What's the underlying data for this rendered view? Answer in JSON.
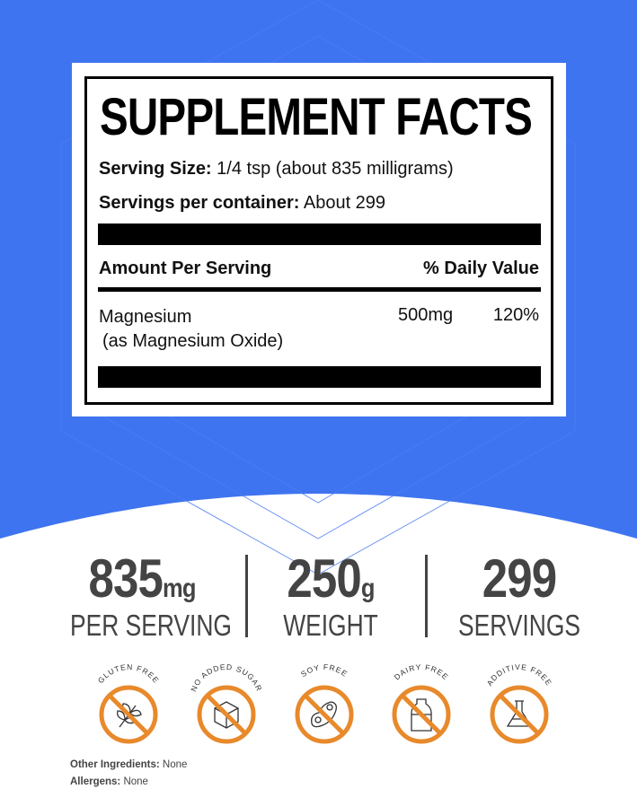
{
  "colors": {
    "background_blue": "#3f74f0",
    "badge_orange": "#e8892b",
    "stat_gray": "#444444"
  },
  "facts": {
    "title": "SUPPLEMENT FACTS",
    "serving_size_label": "Serving Size:",
    "serving_size_value": "1/4 tsp (about 835 milligrams)",
    "servings_label": "Servings per container:",
    "servings_value": "About 299",
    "amount_header": "Amount Per Serving",
    "dv_header": "% Daily Value",
    "rows": [
      {
        "name": "Magnesium",
        "sub": "(as Magnesium Oxide)",
        "amount": "500mg",
        "dv": "120%"
      }
    ]
  },
  "stats": [
    {
      "value": "835",
      "unit": "mg",
      "label": "PER SERVING"
    },
    {
      "value": "250",
      "unit": "g",
      "label": "WEIGHT"
    },
    {
      "value": "299",
      "unit": "",
      "label": "SERVINGS"
    }
  ],
  "badges": [
    {
      "text": "GLUTEN FREE",
      "icon": "wheat-icon"
    },
    {
      "text": "NO ADDED SUGAR",
      "icon": "sugar-cube-icon"
    },
    {
      "text": "SOY FREE",
      "icon": "soybean-icon"
    },
    {
      "text": "DAIRY FREE",
      "icon": "milk-bottle-icon"
    },
    {
      "text": "ADDITIVE FREE",
      "icon": "flask-icon"
    }
  ],
  "footer": {
    "other_label": "Other Ingredients:",
    "other_value": "None",
    "allergens_label": "Allergens:",
    "allergens_value": "None"
  }
}
